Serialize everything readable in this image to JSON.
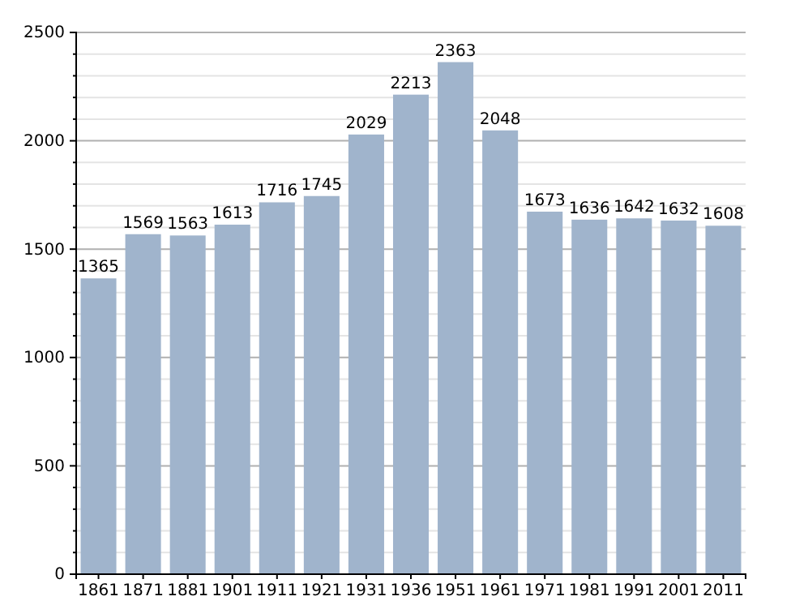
{
  "chart_data": {
    "type": "bar",
    "categories": [
      "1861",
      "1871",
      "1881",
      "1901",
      "1911",
      "1921",
      "1931",
      "1936",
      "1951",
      "1961",
      "1971",
      "1981",
      "1991",
      "2001",
      "2011"
    ],
    "values": [
      1365,
      1569,
      1563,
      1613,
      1716,
      1745,
      2029,
      2213,
      2363,
      2048,
      1673,
      1636,
      1642,
      1632,
      1608
    ],
    "color": "#a0b4cc",
    "ylim": [
      0,
      2500
    ],
    "yticks": [
      0,
      {
        "value": 100,
        "label": null
      },
      {
        "value": 200,
        "label": null
      },
      {
        "value": 300,
        "label": null
      },
      {
        "value": 400,
        "label": null
      },
      500,
      {
        "value": 600,
        "label": null
      },
      {
        "value": 700,
        "label": null
      },
      {
        "value": 800,
        "label": null
      },
      {
        "value": 900,
        "label": null
      },
      1000,
      {
        "value": 1100,
        "label": null
      },
      {
        "value": 1200,
        "label": null
      },
      {
        "value": 1300,
        "label": null
      },
      {
        "value": 1400,
        "label": null
      },
      1500,
      {
        "value": 1600,
        "label": null
      },
      {
        "value": 1700,
        "label": null
      },
      {
        "value": 1800,
        "label": null
      },
      {
        "value": 1900,
        "label": null
      },
      2000,
      {
        "value": 2100,
        "label": null
      },
      {
        "value": 2200,
        "label": null
      },
      {
        "value": 2300,
        "label": null
      },
      {
        "value": 2400,
        "label": null
      },
      2500
    ],
    "grid": "y",
    "data_labels": true
  }
}
